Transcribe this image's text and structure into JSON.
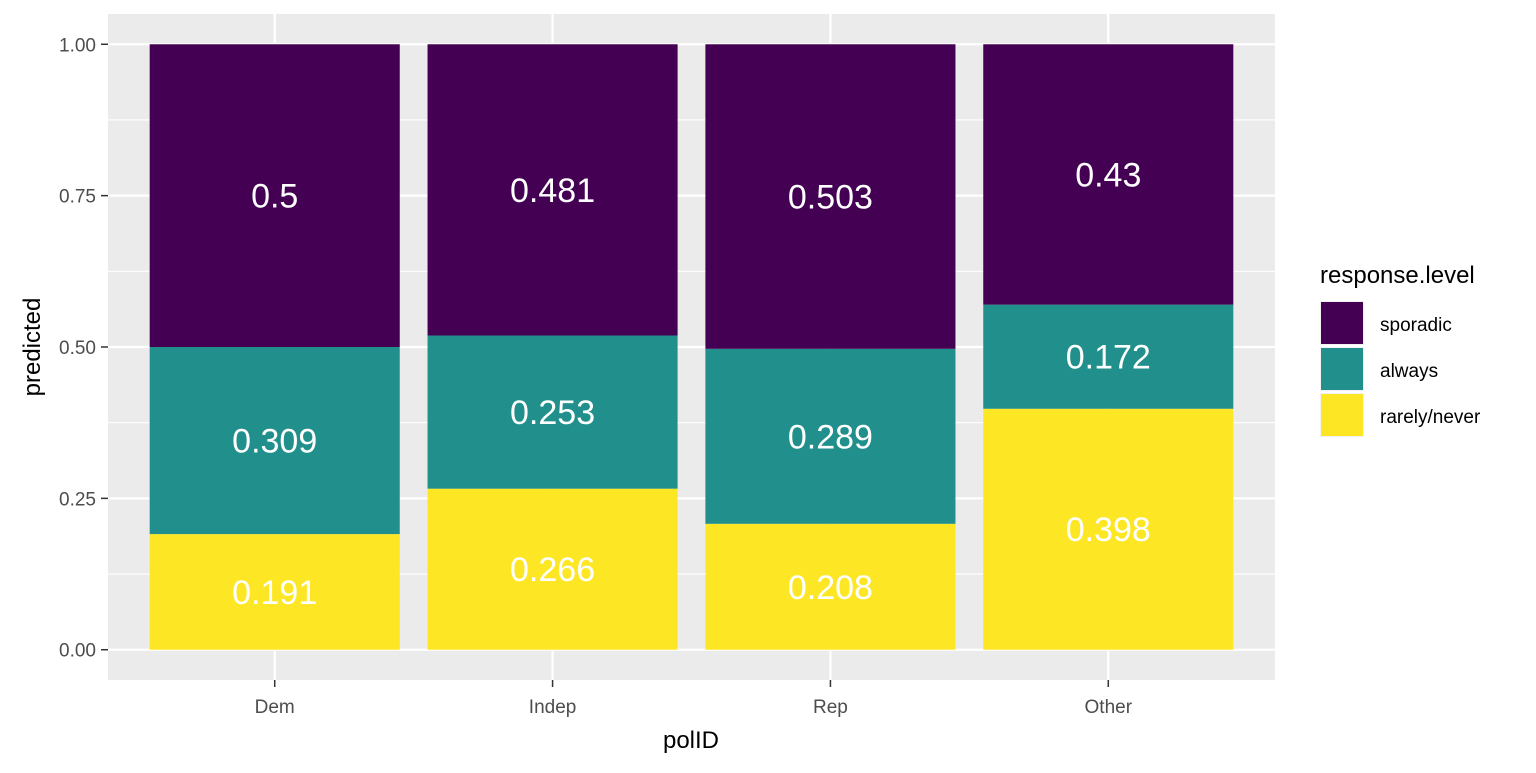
{
  "chart_data": {
    "type": "bar",
    "stacked": true,
    "categories": [
      "Dem",
      "Indep",
      "Rep",
      "Other"
    ],
    "series": [
      {
        "name": "rarely/never",
        "color": "#FDE725",
        "values": [
          0.191,
          0.266,
          0.208,
          0.398
        ]
      },
      {
        "name": "always",
        "color": "#21908C",
        "values": [
          0.309,
          0.253,
          0.289,
          0.172
        ]
      },
      {
        "name": "sporadic",
        "color": "#440154",
        "values": [
          0.5,
          0.481,
          0.503,
          0.43
        ]
      }
    ],
    "value_labels": [
      [
        "0.191",
        "0.266",
        "0.208",
        "0.398"
      ],
      [
        "0.309",
        "0.253",
        "0.289",
        "0.172"
      ],
      [
        "0.5",
        "0.481",
        "0.503",
        "0.43"
      ]
    ],
    "xlabel": "polID",
    "ylabel": "predicted",
    "ylim": [
      -0.05,
      1.05
    ],
    "yticks": [
      0,
      0.25,
      0.5,
      0.75,
      1
    ],
    "ytick_labels": [
      "0.00",
      "0.25",
      "0.50",
      "0.75",
      "1.00"
    ],
    "grid": true,
    "panel_background": "#EBEBEB",
    "legend": {
      "title": "response.level",
      "position": "right",
      "entries": [
        {
          "label": "sporadic",
          "color": "#440154"
        },
        {
          "label": "always",
          "color": "#21908C"
        },
        {
          "label": "rarely/never",
          "color": "#FDE725"
        }
      ]
    }
  }
}
